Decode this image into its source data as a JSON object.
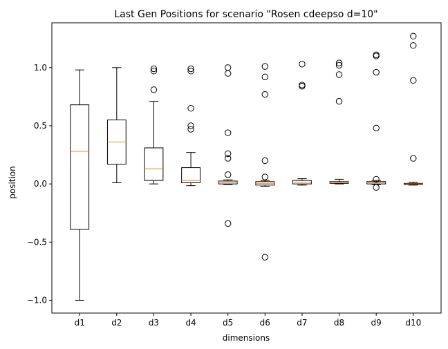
{
  "chart_data": {
    "type": "box",
    "title": "Last Gen Positions for scenario \"Rosen cdeepso d=10\"",
    "xlabel": "dimensions",
    "ylabel": "position",
    "ylim": [
      -1.11,
      1.385
    ],
    "yticks": [
      -1.0,
      -0.5,
      0.0,
      0.5,
      1.0
    ],
    "ytick_labels": [
      "−1.0",
      "−0.5",
      "0.0",
      "0.5",
      "1.0"
    ],
    "grid": false,
    "colors": {
      "box": "#000000",
      "median": "#ff7f0e",
      "flier": "#000000"
    },
    "categories": [
      "d1",
      "d2",
      "d3",
      "d4",
      "d5",
      "d6",
      "d7",
      "d8",
      "d9",
      "d10"
    ],
    "boxes": [
      {
        "label": "d1",
        "whisker_low": -1.0,
        "q1": -0.39,
        "median": 0.28,
        "q3": 0.68,
        "whisker_high": 0.98,
        "fliers": []
      },
      {
        "label": "d2",
        "whisker_low": 0.01,
        "q1": 0.17,
        "median": 0.36,
        "q3": 0.55,
        "whisker_high": 1.0,
        "fliers": []
      },
      {
        "label": "d3",
        "whisker_low": 0.0,
        "q1": 0.03,
        "median": 0.13,
        "q3": 0.31,
        "whisker_high": 0.71,
        "fliers": [
          0.81,
          0.97,
          0.99
        ]
      },
      {
        "label": "d4",
        "whisker_low": -0.015,
        "q1": 0.01,
        "median": 0.03,
        "q3": 0.14,
        "whisker_high": 0.27,
        "fliers": [
          0.47,
          0.5,
          0.65,
          0.97,
          0.99
        ]
      },
      {
        "label": "d5",
        "whisker_low": -0.005,
        "q1": 0.0,
        "median": 0.01,
        "q3": 0.025,
        "whisker_high": 0.035,
        "fliers": [
          -0.34,
          0.08,
          0.22,
          0.26,
          0.44,
          0.95,
          1.0
        ]
      },
      {
        "label": "d6",
        "whisker_low": -0.02,
        "q1": -0.01,
        "median": 0.005,
        "q3": 0.02,
        "whisker_high": 0.03,
        "fliers": [
          -0.63,
          0.06,
          0.2,
          0.77,
          0.92,
          1.01
        ]
      },
      {
        "label": "d7",
        "whisker_low": -0.01,
        "q1": 0.0,
        "median": 0.015,
        "q3": 0.03,
        "whisker_high": 0.045,
        "fliers": [
          0.84,
          0.85,
          1.03
        ]
      },
      {
        "label": "d8",
        "whisker_low": 0.0,
        "q1": 0.005,
        "median": 0.01,
        "q3": 0.02,
        "whisker_high": 0.04,
        "fliers": [
          0.71,
          0.94,
          1.02,
          1.04
        ]
      },
      {
        "label": "d9",
        "whisker_low": -0.005,
        "q1": 0.0,
        "median": 0.01,
        "q3": 0.02,
        "whisker_high": 0.03,
        "fliers": [
          -0.03,
          0.04,
          0.48,
          0.96,
          1.1,
          1.11
        ]
      },
      {
        "label": "d10",
        "whisker_low": -0.01,
        "q1": -0.005,
        "median": 0.0,
        "q3": 0.005,
        "whisker_high": 0.015,
        "fliers": [
          0.22,
          0.89,
          1.19,
          1.27
        ]
      }
    ]
  }
}
